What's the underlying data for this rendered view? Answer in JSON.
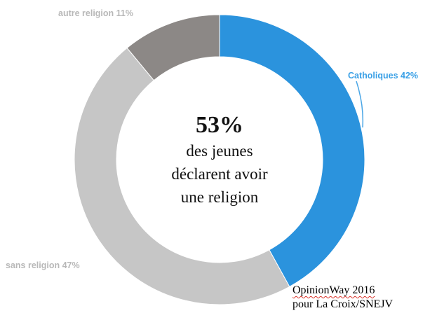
{
  "colors": {
    "catholiques": "#2b93dd",
    "sans_religion": "#c6c6c6",
    "autre_religion": "#8c8886",
    "label_blue": "#3aa0e6",
    "label_grey": "#b8b8b8"
  },
  "chart_data": {
    "type": "pie",
    "variant": "donut",
    "categories": [
      "Catholiques",
      "sans religion",
      "autre religion"
    ],
    "values": [
      42,
      47,
      11
    ],
    "unit": "%",
    "labels": [
      "Catholiques 42%",
      "sans religion 47%",
      "autre religion 11%"
    ],
    "start": "top",
    "direction": "clockwise",
    "center": {
      "headline": "53%",
      "lines": [
        "des jeunes",
        "déclarent avoir",
        "une religion"
      ]
    }
  },
  "source": {
    "line1": "OpinionWay 2016",
    "line2": "pour La Croix/SNEJV"
  }
}
